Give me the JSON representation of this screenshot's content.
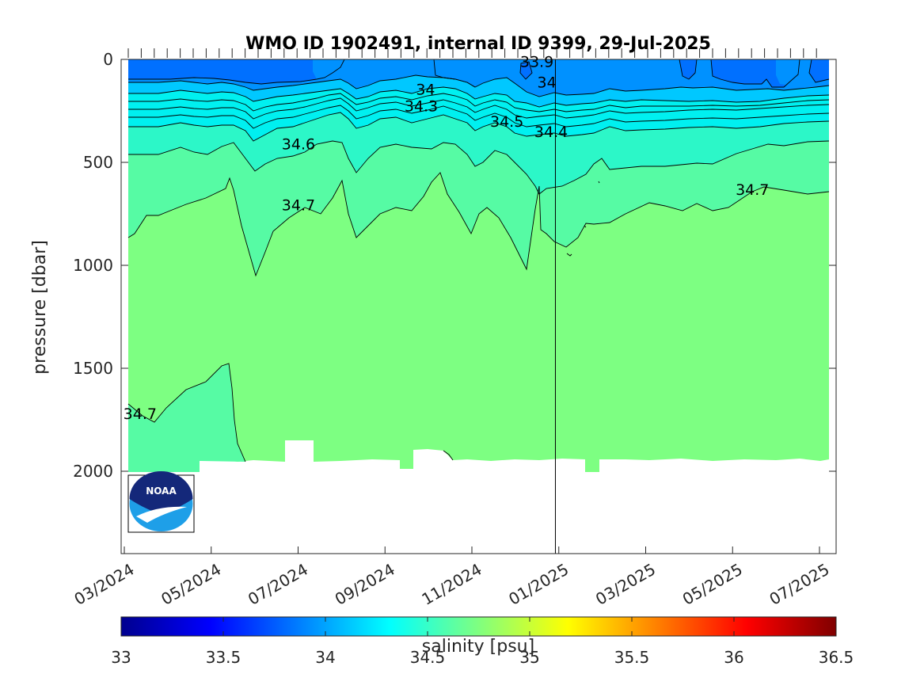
{
  "chart_data": {
    "type": "heatmap",
    "title": "WMO ID 1902491, internal ID 9399, 29-Jul-2025",
    "ylabel": "pressure [dbar]",
    "ylim": [
      0,
      2400
    ],
    "y_reversed": true,
    "yticks": [
      0,
      500,
      1000,
      1500,
      2000
    ],
    "xticks": [
      "03/2024",
      "05/2024",
      "07/2024",
      "09/2024",
      "11/2024",
      "01/2025",
      "03/2025",
      "05/2025",
      "07/2025"
    ],
    "colorbar": {
      "label": "salinity [psu]",
      "range": [
        33,
        36.5
      ],
      "ticks": [
        "33",
        "33.5",
        "34",
        "34.5",
        "35",
        "35.5",
        "36",
        "36.5"
      ],
      "colormap": "jet"
    },
    "contour_labels": [
      {
        "text": "33.9",
        "date": "2024-12-15",
        "pressure": 10
      },
      {
        "text": "34",
        "date": "2024-09-28",
        "pressure": 145
      },
      {
        "text": "34",
        "date": "2024-12-22",
        "pressure": 110
      },
      {
        "text": "34.3",
        "date": "2024-09-25",
        "pressure": 225
      },
      {
        "text": "34.5",
        "date": "2024-11-24",
        "pressure": 300
      },
      {
        "text": "34.4",
        "date": "2024-12-25",
        "pressure": 350
      },
      {
        "text": "34.6",
        "date": "2024-07-01",
        "pressure": 410
      },
      {
        "text": "34.7",
        "date": "2024-07-01",
        "pressure": 705
      },
      {
        "text": "34.7",
        "date": "2025-05-15",
        "pressure": 630
      },
      {
        "text": "34.7",
        "date": "2024-03-12",
        "pressure": 1720
      }
    ],
    "vertical_line_date": "2024-12-28",
    "logo": "noaa-logo",
    "colors": {
      "s_33_9": "#0070ff",
      "s_34_0": "#0091ff",
      "s_34_2": "#00c8ff",
      "s_34_4": "#00f0f0",
      "s_34_5": "#2cf7c8",
      "s_34_6": "#56fba4",
      "s_34_7": "#7dff82"
    }
  }
}
